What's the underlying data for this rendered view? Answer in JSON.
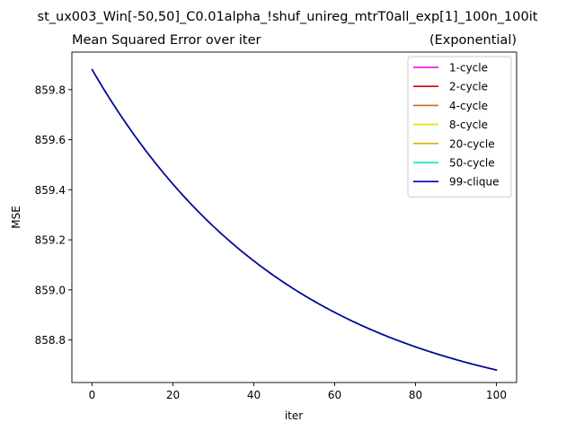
{
  "figure": {
    "suptitle": "st_ux003_Win[-50,50]_C0.01alpha_!shuf_unireg_mtrT0all_exp[1]_100n_100it"
  },
  "chart_data": {
    "type": "line",
    "title": "Mean Squared Error over iter",
    "title_right": "(Exponential)",
    "xlabel": "iter",
    "ylabel": "MSE",
    "xlim": [
      -5,
      105
    ],
    "ylim": [
      858.63,
      859.95
    ],
    "xticks": [
      0,
      20,
      40,
      60,
      80,
      100
    ],
    "xtick_labels": [
      "0",
      "20",
      "40",
      "60",
      "80",
      "100"
    ],
    "yticks": [
      858.8,
      859.0,
      859.2,
      859.4,
      859.6,
      859.8
    ],
    "ytick_labels": [
      "858.8",
      "859.0",
      "859.2",
      "859.4",
      "859.6",
      "859.8"
    ],
    "grid": false,
    "legend_position": "top-right",
    "x": [
      0,
      10,
      20,
      30,
      40,
      50,
      60,
      70,
      80,
      90,
      100
    ],
    "series": [
      {
        "name": "1-cycle",
        "color": "#e000e0",
        "values": [
          859.88,
          859.65,
          859.46,
          859.27,
          859.12,
          859.0,
          858.91,
          858.84,
          858.78,
          858.73,
          858.68
        ]
      },
      {
        "name": "2-cycle",
        "color": "#d00000",
        "values": [
          859.88,
          859.65,
          859.46,
          859.27,
          859.12,
          859.0,
          858.91,
          858.84,
          858.78,
          858.73,
          858.68
        ]
      },
      {
        "name": "4-cycle",
        "color": "#d2691e",
        "values": [
          859.88,
          859.65,
          859.46,
          859.27,
          859.12,
          859.0,
          858.91,
          858.84,
          858.78,
          858.73,
          858.68
        ]
      },
      {
        "name": "8-cycle",
        "color": "#e0e000",
        "values": [
          859.88,
          859.65,
          859.46,
          859.27,
          859.12,
          859.0,
          858.91,
          858.84,
          858.78,
          858.73,
          858.68
        ]
      },
      {
        "name": "20-cycle",
        "color": "#e0b000",
        "values": [
          859.88,
          859.65,
          859.46,
          859.27,
          859.12,
          859.0,
          858.91,
          858.84,
          858.78,
          858.73,
          858.68
        ]
      },
      {
        "name": "50-cycle",
        "color": "#00e0b0",
        "values": [
          859.88,
          859.65,
          859.46,
          859.27,
          859.12,
          859.0,
          858.91,
          858.84,
          858.78,
          858.73,
          858.68
        ]
      },
      {
        "name": "99-clique",
        "color": "#0000b0",
        "values": [
          859.88,
          859.65,
          859.46,
          859.27,
          859.12,
          859.0,
          858.91,
          858.84,
          858.78,
          858.73,
          858.68
        ]
      }
    ]
  }
}
